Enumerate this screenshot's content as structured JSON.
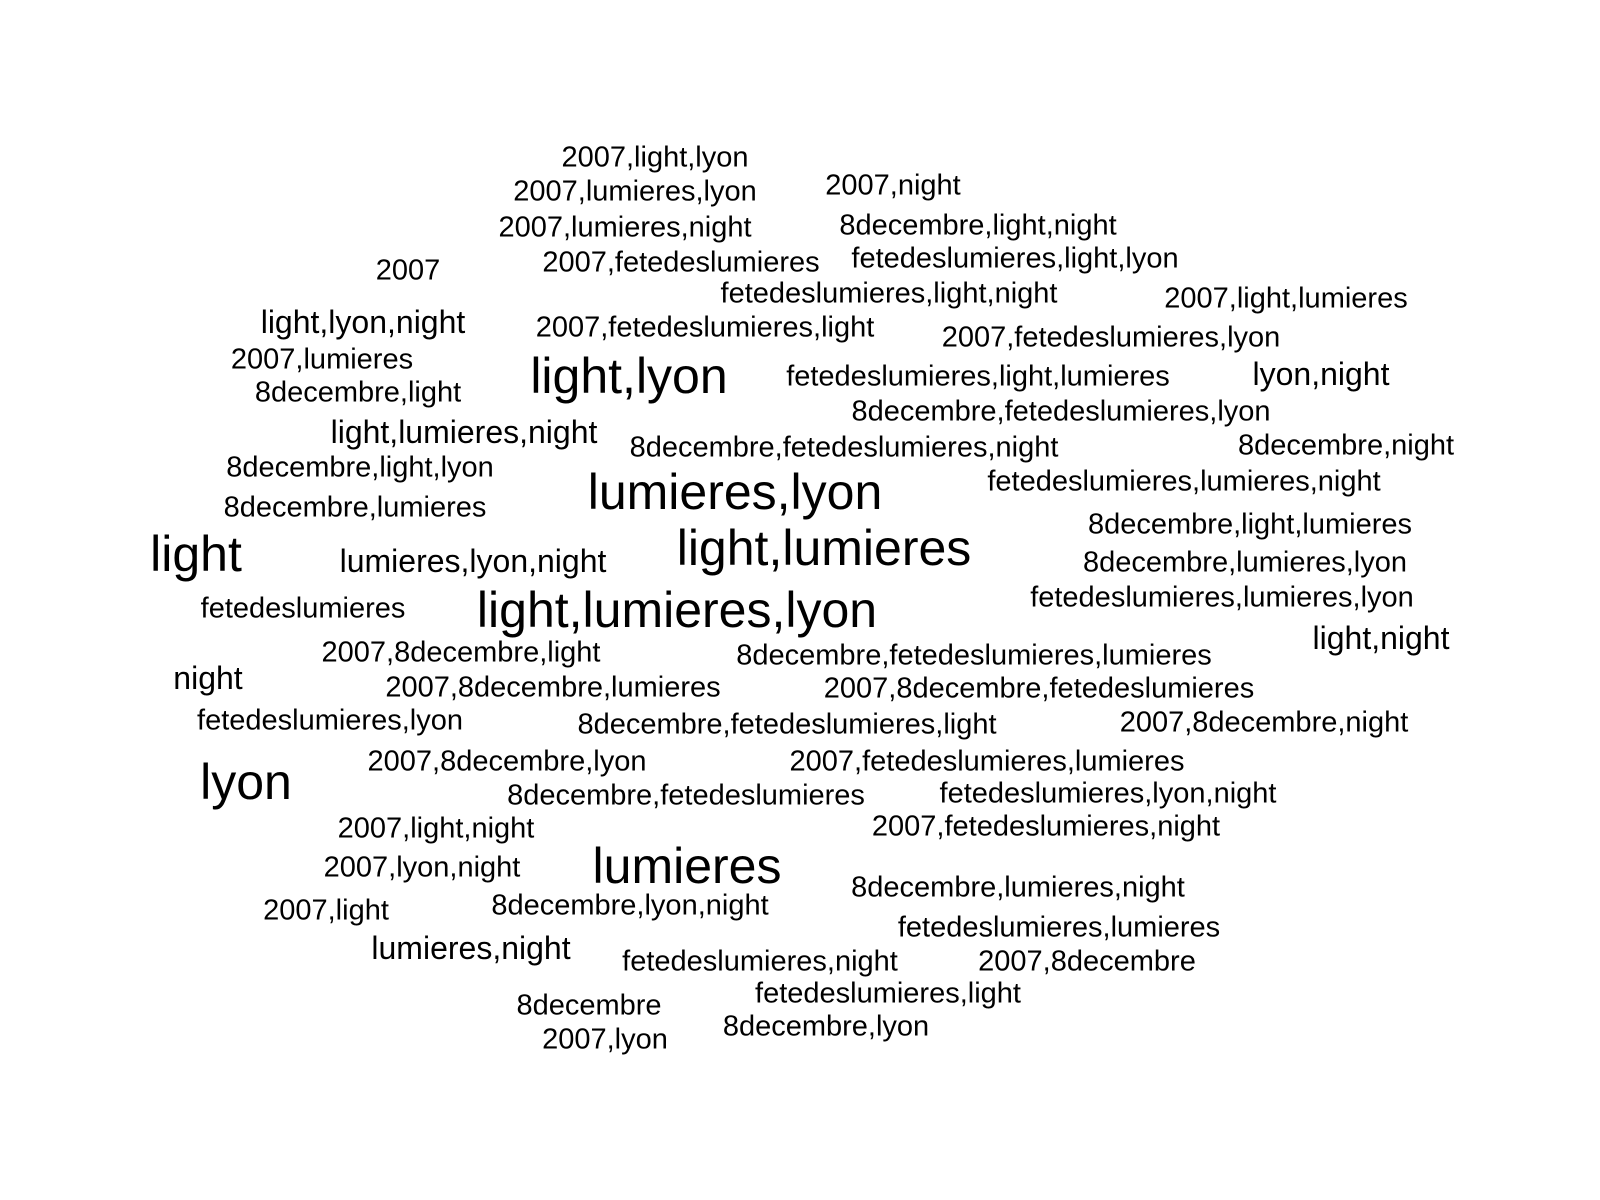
{
  "chart_data": {
    "type": "wordcloud",
    "text_color": "#000000",
    "background": "#ffffff",
    "words": [
      {
        "text": "light,lumieres,lyon",
        "weight": 5
      },
      {
        "text": "light,lumieres",
        "weight": 5
      },
      {
        "text": "lumieres,lyon",
        "weight": 5
      },
      {
        "text": "light,lyon",
        "weight": 5
      },
      {
        "text": "lumieres",
        "weight": 5
      },
      {
        "text": "light",
        "weight": 5
      },
      {
        "text": "lyon",
        "weight": 5
      },
      {
        "text": "light,lyon,night",
        "weight": 3
      },
      {
        "text": "light,lumieres,night",
        "weight": 3
      },
      {
        "text": "lumieres,lyon,night",
        "weight": 3
      },
      {
        "text": "lyon,night",
        "weight": 3
      },
      {
        "text": "light,night",
        "weight": 3
      },
      {
        "text": "lumieres,night",
        "weight": 3
      },
      {
        "text": "night",
        "weight": 3
      },
      {
        "text": "2007,light,lyon",
        "weight": 2
      },
      {
        "text": "2007,lumieres,lyon",
        "weight": 2
      },
      {
        "text": "2007,lumieres,night",
        "weight": 2
      },
      {
        "text": "2007,fetedeslumieres",
        "weight": 2
      },
      {
        "text": "2007,night",
        "weight": 2
      },
      {
        "text": "8decembre,light,night",
        "weight": 2
      },
      {
        "text": "fetedeslumieres,light,lyon",
        "weight": 2
      },
      {
        "text": "fetedeslumieres,light,night",
        "weight": 2
      },
      {
        "text": "2007,light,lumieres",
        "weight": 2
      },
      {
        "text": "2007",
        "weight": 2
      },
      {
        "text": "2007,fetedeslumieres,light",
        "weight": 2
      },
      {
        "text": "2007,fetedeslumieres,lyon",
        "weight": 2
      },
      {
        "text": "2007,lumieres",
        "weight": 2
      },
      {
        "text": "8decembre,light",
        "weight": 2
      },
      {
        "text": "fetedeslumieres,light,lumieres",
        "weight": 2
      },
      {
        "text": "8decembre,fetedeslumieres,lyon",
        "weight": 2
      },
      {
        "text": "8decembre,fetedeslumieres,night",
        "weight": 2
      },
      {
        "text": "8decembre,night",
        "weight": 2
      },
      {
        "text": "8decembre,light,lyon",
        "weight": 2
      },
      {
        "text": "fetedeslumieres,lumieres,night",
        "weight": 2
      },
      {
        "text": "8decembre,lumieres",
        "weight": 2
      },
      {
        "text": "8decembre,light,lumieres",
        "weight": 2
      },
      {
        "text": "8decembre,lumieres,lyon",
        "weight": 2
      },
      {
        "text": "fetedeslumieres",
        "weight": 2
      },
      {
        "text": "fetedeslumieres,lumieres,lyon",
        "weight": 2
      },
      {
        "text": "2007,8decembre,light",
        "weight": 2
      },
      {
        "text": "8decembre,fetedeslumieres,lumieres",
        "weight": 2
      },
      {
        "text": "2007,8decembre,lumieres",
        "weight": 2
      },
      {
        "text": "2007,8decembre,fetedeslumieres",
        "weight": 2
      },
      {
        "text": "fetedeslumieres,lyon",
        "weight": 2
      },
      {
        "text": "8decembre,fetedeslumieres,light",
        "weight": 2
      },
      {
        "text": "2007,8decembre,night",
        "weight": 2
      },
      {
        "text": "2007,8decembre,lyon",
        "weight": 2
      },
      {
        "text": "2007,fetedeslumieres,lumieres",
        "weight": 2
      },
      {
        "text": "8decembre,fetedeslumieres",
        "weight": 2
      },
      {
        "text": "fetedeslumieres,lyon,night",
        "weight": 2
      },
      {
        "text": "2007,light,night",
        "weight": 2
      },
      {
        "text": "2007,fetedeslumieres,night",
        "weight": 2
      },
      {
        "text": "2007,lyon,night",
        "weight": 2
      },
      {
        "text": "8decembre,lumieres,night",
        "weight": 2
      },
      {
        "text": "2007,light",
        "weight": 2
      },
      {
        "text": "8decembre,lyon,night",
        "weight": 2
      },
      {
        "text": "fetedeslumieres,lumieres",
        "weight": 2
      },
      {
        "text": "fetedeslumieres,night",
        "weight": 2
      },
      {
        "text": "2007,8decembre",
        "weight": 2
      },
      {
        "text": "fetedeslumieres,light",
        "weight": 2
      },
      {
        "text": "8decembre",
        "weight": 2
      },
      {
        "text": "8decembre,lyon",
        "weight": 2
      },
      {
        "text": "2007,lyon",
        "weight": 2
      }
    ]
  }
}
